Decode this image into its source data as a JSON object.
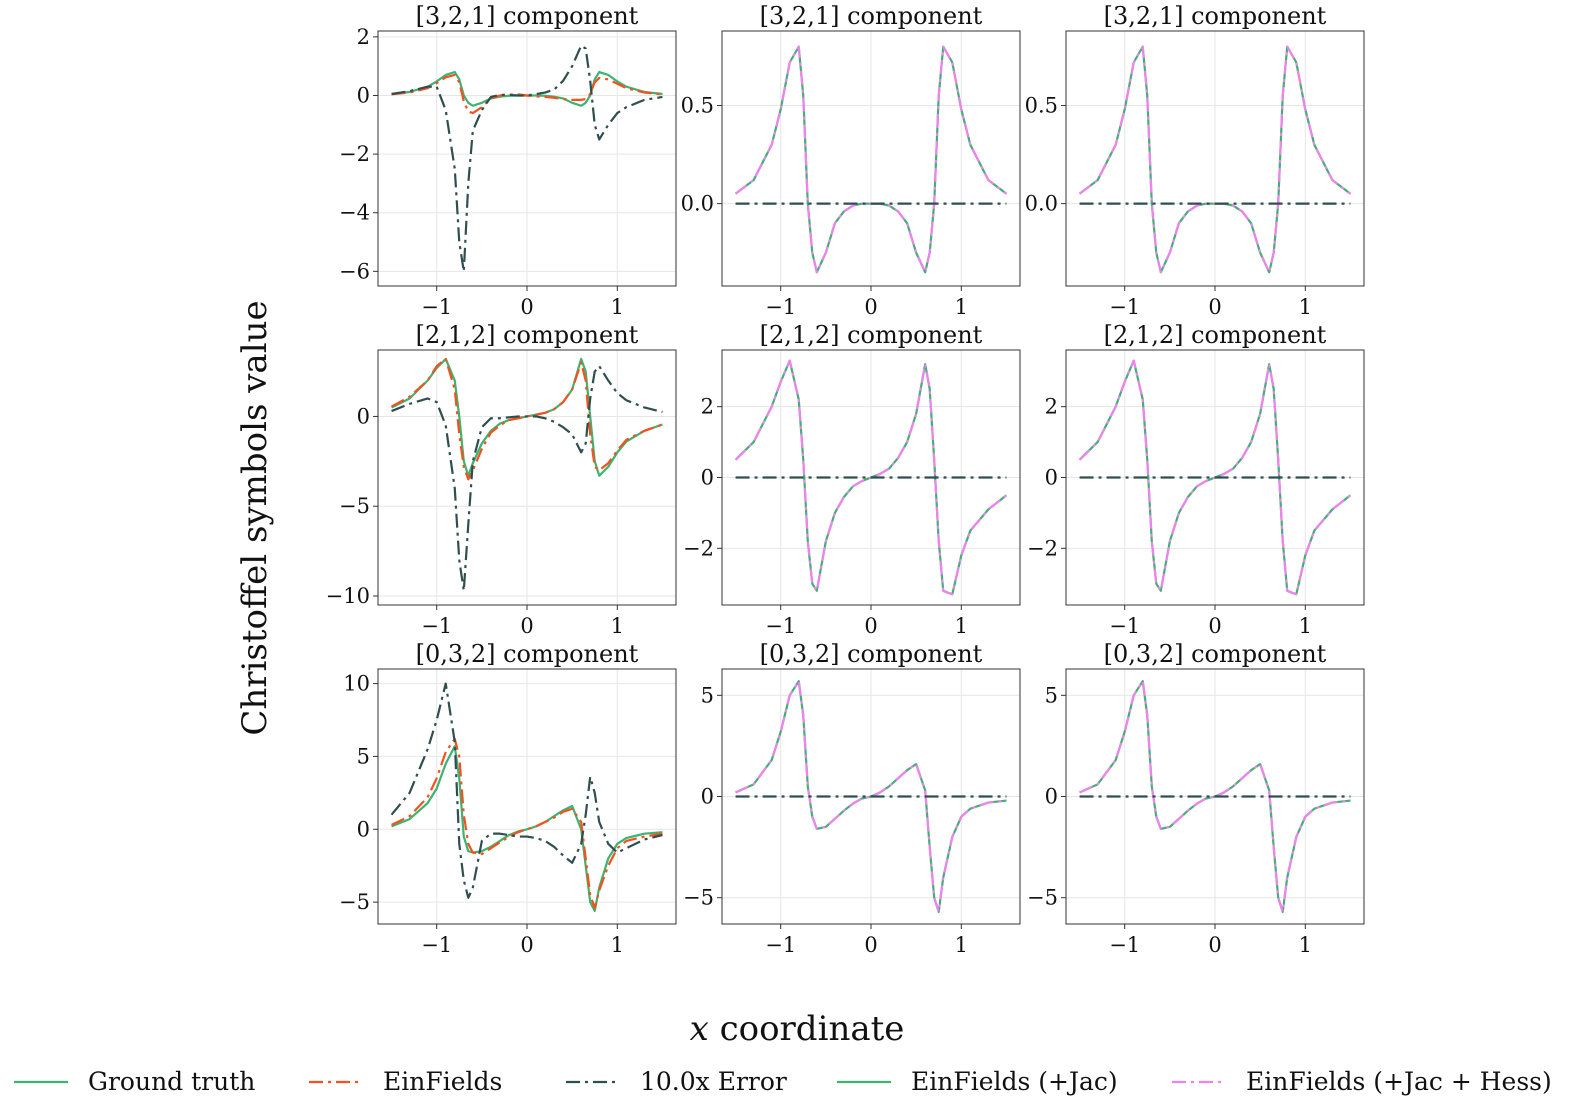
{
  "figure": {
    "ylabel": "Christoffel symbols value",
    "xlabel_var": "x",
    "xlabel_rest": " coordinate"
  },
  "legend": [
    {
      "key": "gt",
      "label": "Ground truth",
      "color": "#3cb371",
      "dash": "solid"
    },
    {
      "key": "ein",
      "label": "EinFields",
      "color": "#f4511e",
      "dash": "dashdot"
    },
    {
      "key": "err",
      "label": "10.0x Error",
      "color": "#2f4f4f",
      "dash": "dashdot"
    },
    {
      "key": "jac",
      "label": "EinFields (+Jac)",
      "color": "#3cb371",
      "dash": "solid"
    },
    {
      "key": "hess",
      "label": "EinFields (+Jac + Hess)",
      "color": "#ee82ee",
      "dash": "dashdot"
    }
  ],
  "chart_data": {
    "type": "line",
    "layout": "3x3 grid",
    "x_range": [
      -1.5,
      1.5
    ],
    "x_ticks": [
      -1,
      0,
      1
    ],
    "x_tick_labels": [
      "−1",
      "0",
      "1"
    ],
    "panels": [
      {
        "title": "[3,2,1] component",
        "row": 0,
        "col": 0,
        "model": "EinFields",
        "ylim": [
          -6.5,
          2.2
        ],
        "y_ticks": [
          2,
          0,
          -2,
          -4,
          -6
        ],
        "y_tick_labels": [
          "2",
          "0",
          "−2",
          "−4",
          "−6"
        ]
      },
      {
        "title": "[3,2,1] component",
        "row": 0,
        "col": 1,
        "model": "EinFields (+Jac)",
        "ylim": [
          -0.42,
          0.88
        ],
        "y_ticks": [
          0.5,
          0.0
        ],
        "y_tick_labels": [
          "0.5",
          "0.0"
        ]
      },
      {
        "title": "[3,2,1] component",
        "row": 0,
        "col": 2,
        "model": "EinFields (+Jac + Hess)",
        "ylim": [
          -0.42,
          0.88
        ],
        "y_ticks": [
          0.5,
          0.0
        ],
        "y_tick_labels": [
          "0.5",
          "0.0"
        ]
      },
      {
        "title": "[2,1,2] component",
        "row": 1,
        "col": 0,
        "model": "EinFields",
        "ylim": [
          -10.5,
          3.7
        ],
        "y_ticks": [
          0,
          -5,
          -10
        ],
        "y_tick_labels": [
          "0",
          "−5",
          "−10"
        ]
      },
      {
        "title": "[2,1,2] component",
        "row": 1,
        "col": 1,
        "model": "EinFields (+Jac)",
        "ylim": [
          -3.6,
          3.6
        ],
        "y_ticks": [
          2,
          0,
          -2
        ],
        "y_tick_labels": [
          "2",
          "0",
          "−2"
        ]
      },
      {
        "title": "[2,1,2] component",
        "row": 1,
        "col": 2,
        "model": "EinFields (+Jac + Hess)",
        "ylim": [
          -3.6,
          3.6
        ],
        "y_ticks": [
          2,
          0,
          -2
        ],
        "y_tick_labels": [
          "2",
          "0",
          "−2"
        ]
      },
      {
        "title": "[0,3,2] component",
        "row": 2,
        "col": 0,
        "model": "EinFields",
        "ylim": [
          -6.5,
          11.0
        ],
        "y_ticks": [
          10,
          5,
          0,
          -5
        ],
        "y_tick_labels": [
          "10",
          "5",
          "0",
          "−5"
        ]
      },
      {
        "title": "[0,3,2] component",
        "row": 2,
        "col": 1,
        "model": "EinFields (+Jac)",
        "ylim": [
          -6.3,
          6.3
        ],
        "y_ticks": [
          5,
          0,
          -5
        ],
        "y_tick_labels": [
          "5",
          "0",
          "−5"
        ]
      },
      {
        "title": "[0,3,2] component",
        "row": 2,
        "col": 2,
        "model": "EinFields (+Jac + Hess)",
        "ylim": [
          -6.3,
          6.3
        ],
        "y_ticks": [
          5,
          0,
          -5
        ],
        "y_tick_labels": [
          "5",
          "0",
          "−5"
        ]
      }
    ],
    "series_values": {
      "x": [
        -1.5,
        -1.3,
        -1.1,
        -1.0,
        -0.9,
        -0.8,
        -0.75,
        -0.7,
        -0.65,
        -0.6,
        -0.5,
        -0.4,
        -0.3,
        -0.2,
        -0.1,
        0.0,
        0.1,
        0.2,
        0.3,
        0.4,
        0.5,
        0.6,
        0.65,
        0.7,
        0.75,
        0.8,
        0.9,
        1.0,
        1.1,
        1.3,
        1.5
      ],
      "c321_ground_truth": [
        0.05,
        0.12,
        0.3,
        0.48,
        0.7,
        0.8,
        0.55,
        0.0,
        -0.25,
        -0.35,
        -0.25,
        -0.1,
        -0.04,
        -0.01,
        0.0,
        0.0,
        0.0,
        -0.01,
        -0.04,
        -0.1,
        -0.25,
        -0.35,
        -0.25,
        0.0,
        0.55,
        0.8,
        0.7,
        0.48,
        0.3,
        0.12,
        0.05
      ],
      "c321_einfields": [
        0.04,
        0.1,
        0.25,
        0.42,
        0.62,
        0.7,
        0.45,
        -0.2,
        -0.55,
        -0.6,
        -0.4,
        -0.1,
        0.0,
        0.03,
        0.04,
        0.0,
        -0.03,
        -0.05,
        -0.08,
        -0.12,
        -0.15,
        -0.15,
        -0.12,
        0.05,
        0.45,
        0.6,
        0.55,
        0.4,
        0.25,
        0.1,
        0.04
      ],
      "c321_error_10x": [
        0.05,
        0.15,
        0.3,
        0.3,
        -0.5,
        -2.5,
        -5.0,
        -6.0,
        -3.0,
        -1.2,
        -0.5,
        -0.05,
        0.02,
        0.02,
        0.0,
        0.0,
        0.05,
        0.1,
        0.2,
        0.5,
        1.0,
        1.7,
        1.6,
        0.5,
        -1.0,
        -1.5,
        -1.0,
        -0.6,
        -0.4,
        -0.15,
        -0.05
      ],
      "c212_ground_truth": [
        0.5,
        1.0,
        2.0,
        2.7,
        3.2,
        2.0,
        0.0,
        -2.5,
        -3.3,
        -2.6,
        -1.5,
        -0.8,
        -0.4,
        -0.2,
        -0.1,
        0.0,
        0.1,
        0.2,
        0.4,
        0.8,
        1.5,
        3.2,
        2.5,
        0.0,
        -2.5,
        -3.3,
        -2.8,
        -2.0,
        -1.4,
        -0.8,
        -0.45
      ],
      "c212_einfields": [
        0.55,
        1.1,
        2.0,
        2.8,
        3.2,
        1.5,
        -1.0,
        -2.8,
        -3.5,
        -3.0,
        -1.8,
        -0.9,
        -0.5,
        -0.2,
        -0.1,
        0.0,
        0.1,
        0.2,
        0.4,
        0.8,
        1.5,
        3.0,
        2.0,
        -1.0,
        -2.8,
        -3.0,
        -2.6,
        -1.9,
        -1.3,
        -0.8,
        -0.45
      ],
      "c212_error_10x": [
        0.3,
        0.7,
        1.0,
        0.8,
        -0.5,
        -4.0,
        -8.0,
        -9.7,
        -6.0,
        -2.5,
        -0.6,
        -0.1,
        -0.1,
        -0.05,
        0.0,
        0.0,
        0.0,
        -0.1,
        -0.3,
        -0.6,
        -1.0,
        -2.0,
        -1.5,
        1.0,
        2.5,
        2.8,
        2.0,
        1.3,
        0.9,
        0.5,
        0.25
      ],
      "c212_model": [
        0.5,
        1.0,
        2.0,
        2.7,
        3.3,
        2.2,
        0.5,
        -1.8,
        -3.0,
        -3.2,
        -1.8,
        -1.0,
        -0.55,
        -0.25,
        -0.1,
        0.0,
        0.1,
        0.25,
        0.55,
        1.0,
        1.8,
        3.2,
        2.5,
        0.5,
        -1.8,
        -3.2,
        -3.3,
        -2.2,
        -1.5,
        -0.9,
        -0.5
      ],
      "c321_model": [
        0.05,
        0.12,
        0.3,
        0.48,
        0.72,
        0.8,
        0.55,
        0.0,
        -0.25,
        -0.35,
        -0.25,
        -0.1,
        -0.04,
        -0.01,
        0.0,
        0.0,
        0.0,
        -0.01,
        -0.04,
        -0.1,
        -0.25,
        -0.35,
        -0.25,
        0.0,
        0.55,
        0.8,
        0.72,
        0.48,
        0.3,
        0.12,
        0.05
      ],
      "c032_ground_truth": [
        0.2,
        0.7,
        1.8,
        2.8,
        4.5,
        5.7,
        3.5,
        -0.5,
        -1.5,
        -1.6,
        -1.5,
        -1.2,
        -0.8,
        -0.4,
        -0.15,
        0.0,
        0.2,
        0.5,
        0.9,
        1.3,
        1.6,
        0.0,
        -2.5,
        -5.0,
        -5.6,
        -4.0,
        -2.0,
        -1.0,
        -0.6,
        -0.3,
        -0.2
      ],
      "c032_einfields": [
        0.3,
        0.9,
        2.2,
        3.5,
        5.3,
        6.2,
        5.0,
        1.0,
        -1.0,
        -1.6,
        -1.7,
        -1.3,
        -0.9,
        -0.5,
        -0.2,
        0.0,
        0.2,
        0.5,
        0.8,
        1.2,
        1.4,
        0.5,
        -2.0,
        -4.5,
        -5.4,
        -4.2,
        -2.5,
        -1.3,
        -0.8,
        -0.5,
        -0.3
      ],
      "c032_error_10x": [
        1.0,
        2.5,
        5.5,
        7.5,
        10.0,
        6.0,
        -1.0,
        -3.5,
        -4.7,
        -4.0,
        -0.8,
        -0.3,
        -0.3,
        -0.4,
        -0.5,
        -0.5,
        -0.6,
        -0.8,
        -1.2,
        -1.8,
        -2.3,
        -1.0,
        1.0,
        3.6,
        2.5,
        0.5,
        -1.0,
        -1.6,
        -1.3,
        -0.7,
        -0.4
      ],
      "c032_model": [
        0.2,
        0.6,
        1.8,
        3.2,
        5.0,
        5.7,
        4.0,
        0.5,
        -1.0,
        -1.6,
        -1.5,
        -1.1,
        -0.7,
        -0.35,
        -0.1,
        0.0,
        0.2,
        0.5,
        0.9,
        1.3,
        1.6,
        0.3,
        -2.5,
        -5.0,
        -5.7,
        -4.0,
        -2.0,
        -1.0,
        -0.6,
        -0.3,
        -0.2
      ],
      "model_error_10x": [
        0.0,
        0.0,
        0.0,
        0.0,
        0.0,
        0.0,
        0.0,
        0.0,
        0.0,
        0.0,
        0.0,
        0.0,
        0.0,
        0.0,
        0.0,
        0.0,
        0.0,
        0.0,
        0.0,
        0.0,
        0.0,
        0.0,
        0.0,
        0.0,
        0.0,
        0.0,
        0.0,
        0.0,
        0.0,
        0.0,
        0.0
      ]
    }
  }
}
